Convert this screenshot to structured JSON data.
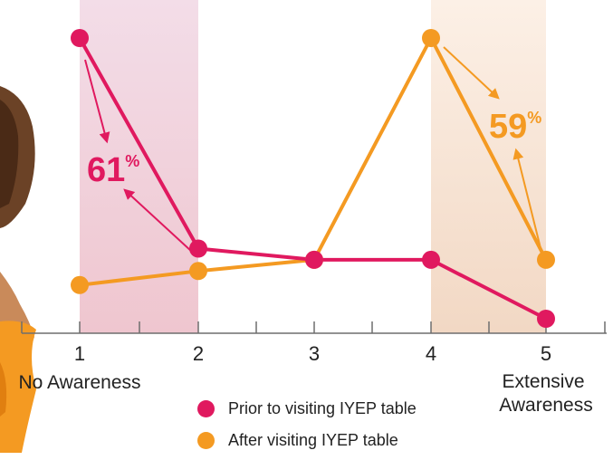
{
  "chart_data": {
    "type": "line",
    "title": "",
    "x": [
      1,
      2,
      3,
      4,
      5
    ],
    "xlabel": "",
    "ylabel": "",
    "category_labels": {
      "1": "No Awareness",
      "5": "Extensive Awareness"
    },
    "ylim": [
      0,
      100
    ],
    "grid": false,
    "legend_position": "bottom-center",
    "series": [
      {
        "name": "Prior to visiting IYEP table",
        "color": "#E0195F",
        "values": [
          100,
          25,
          21,
          21,
          0
        ]
      },
      {
        "name": "After visiting IYEP table",
        "color": "#F49A22",
        "values": [
          12,
          17,
          21,
          100,
          21
        ]
      }
    ],
    "annotations": [
      {
        "text": "61",
        "suffix": "%",
        "series": 0,
        "color": "#E0195F"
      },
      {
        "text": "59",
        "suffix": "%",
        "series": 1,
        "color": "#F49A22"
      }
    ],
    "highlight_bands": [
      {
        "from": 1,
        "to": 2,
        "color": "#E0195F"
      },
      {
        "from": 4,
        "to": 5,
        "color": "#F49A22"
      }
    ]
  }
}
